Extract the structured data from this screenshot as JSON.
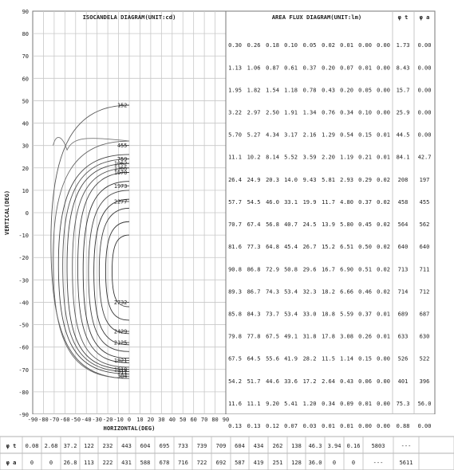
{
  "chart_data": [
    {
      "type": "contour",
      "title": "ISOCANDELA DIAGRAM(UNIT:cd)",
      "xlabel": "HORIZONTAL(DEG)",
      "ylabel": "VERTICAL(DEG)",
      "xlim": [
        -90,
        90
      ],
      "ylim": [
        -90,
        90
      ],
      "x_ticks": [
        "-90",
        "-80",
        "-70",
        "-60",
        "-50",
        "-40",
        "-30",
        "-20",
        "-10",
        "0",
        "10",
        "20",
        "30",
        "40",
        "50",
        "60",
        "70",
        "80",
        "90"
      ],
      "y_ticks": [
        "90",
        "80",
        "70",
        "60",
        "50",
        "40",
        "30",
        "20",
        "10",
        "0",
        "-10",
        "-20",
        "-30",
        "-40",
        "-50",
        "-60",
        "-70",
        "-80",
        "-90"
      ],
      "grid": true,
      "contours": [
        {
          "level": "152",
          "label_y": 48
        },
        {
          "level": "304",
          "label_y": -73
        },
        {
          "level": "455",
          "label_y": 30
        },
        {
          "level": "759",
          "label_y": 24
        },
        {
          "level": "1062",
          "label_y": 22
        },
        {
          "level": "1366",
          "label_y": 20
        },
        {
          "level": "1670",
          "label_y": 18
        },
        {
          "level": "1973",
          "label_y": 12
        },
        {
          "level": "2277",
          "label_y": 5
        },
        {
          "level": "2732",
          "label_y": -40
        },
        {
          "level": "2429",
          "label_y": -53
        },
        {
          "level": "2125",
          "label_y": -58
        },
        {
          "level": "1821",
          "label_y": -66
        },
        {
          "level": "1518",
          "label_y": -70
        },
        {
          "level": "911",
          "label_y": -71
        }
      ]
    },
    {
      "type": "table",
      "title": "AREA FLUX DIAGRAM(UNIT:lm)",
      "rows": [
        [
          "0.30",
          "0.26",
          "0.18",
          "0.10",
          "0.05",
          "0.02",
          "0.01",
          "0.00",
          "0.00"
        ],
        [
          "1.13",
          "1.06",
          "0.87",
          "0.61",
          "0.37",
          "0.20",
          "0.07",
          "0.01",
          "0.00"
        ],
        [
          "1.95",
          "1.82",
          "1.54",
          "1.18",
          "0.78",
          "0.43",
          "0.20",
          "0.05",
          "0.00"
        ],
        [
          "3.22",
          "2.97",
          "2.50",
          "1.91",
          "1.34",
          "0.76",
          "0.34",
          "0.10",
          "0.00"
        ],
        [
          "5.70",
          "5.27",
          "4.34",
          "3.17",
          "2.16",
          "1.29",
          "0.54",
          "0.15",
          "0.01"
        ],
        [
          "11.1",
          "10.2",
          "8.14",
          "5.52",
          "3.59",
          "2.20",
          "1.19",
          "0.21",
          "0.01"
        ],
        [
          "26.4",
          "24.9",
          "20.3",
          "14.0",
          "9.43",
          "5.81",
          "2.93",
          "0.29",
          "0.02"
        ],
        [
          "57.7",
          "54.5",
          "46.0",
          "33.1",
          "19.9",
          "11.7",
          "4.80",
          "0.37",
          "0.02"
        ],
        [
          "70.7",
          "67.4",
          "56.8",
          "40.7",
          "24.5",
          "13.9",
          "5.80",
          "0.45",
          "0.02"
        ],
        [
          "81.6",
          "77.3",
          "64.8",
          "45.4",
          "26.7",
          "15.2",
          "6.51",
          "0.50",
          "0.02"
        ],
        [
          "90.8",
          "86.8",
          "72.9",
          "50.8",
          "29.6",
          "16.7",
          "6.90",
          "0.51",
          "0.02"
        ],
        [
          "89.3",
          "86.7",
          "74.3",
          "53.4",
          "32.3",
          "18.2",
          "6.66",
          "0.46",
          "0.02"
        ],
        [
          "85.8",
          "84.3",
          "73.7",
          "53.4",
          "33.0",
          "18.8",
          "5.59",
          "0.37",
          "0.01"
        ],
        [
          "79.8",
          "77.8",
          "67.5",
          "49.1",
          "31.8",
          "17.8",
          "3.08",
          "0.26",
          "0.01"
        ],
        [
          "67.5",
          "64.5",
          "55.6",
          "41.9",
          "28.2",
          "11.5",
          "1.14",
          "0.15",
          "0.00"
        ],
        [
          "54.2",
          "51.7",
          "44.6",
          "33.6",
          "17.2",
          "2.64",
          "0.43",
          "0.06",
          "0.00"
        ],
        [
          "11.6",
          "11.1",
          "9.20",
          "5.41",
          "1.20",
          "0.34",
          "0.09",
          "0.01",
          "0.00"
        ],
        [
          "0.13",
          "0.13",
          "0.12",
          "0.07",
          "0.03",
          "0.01",
          "0.01",
          "0.00",
          "0.00"
        ]
      ],
      "phi_t_header": "φ t",
      "phi_a_header": "φ a",
      "phi_t_col": [
        "1.73",
        "8.43",
        "15.7",
        "25.9",
        "44.5",
        "84.1",
        "208",
        "458",
        "564",
        "640",
        "713",
        "714",
        "689",
        "633",
        "526",
        "401",
        "75.3",
        "0.88"
      ],
      "phi_a_col": [
        "0.00",
        "0.00",
        "0.00",
        "0.00",
        "0.00",
        "42.7",
        "197",
        "455",
        "562",
        "640",
        "711",
        "712",
        "687",
        "630",
        "522",
        "396",
        "56.0",
        "0.00"
      ]
    },
    {
      "type": "table",
      "rows": [
        {
          "label": "φ t",
          "values": [
            "0.08",
            "2.68",
            "37.2",
            "122",
            "232",
            "443",
            "604",
            "695",
            "733",
            "739",
            "709",
            "604",
            "434",
            "262",
            "138",
            "46.3",
            "3.94",
            "0.16",
            "5803",
            "---"
          ]
        },
        {
          "label": "φ a",
          "values": [
            "0",
            "0",
            "26.8",
            "113",
            "222",
            "431",
            "588",
            "678",
            "716",
            "722",
            "692",
            "587",
            "419",
            "251",
            "128",
            "36.0",
            "0",
            "0",
            "---",
            "5611"
          ]
        }
      ]
    }
  ]
}
